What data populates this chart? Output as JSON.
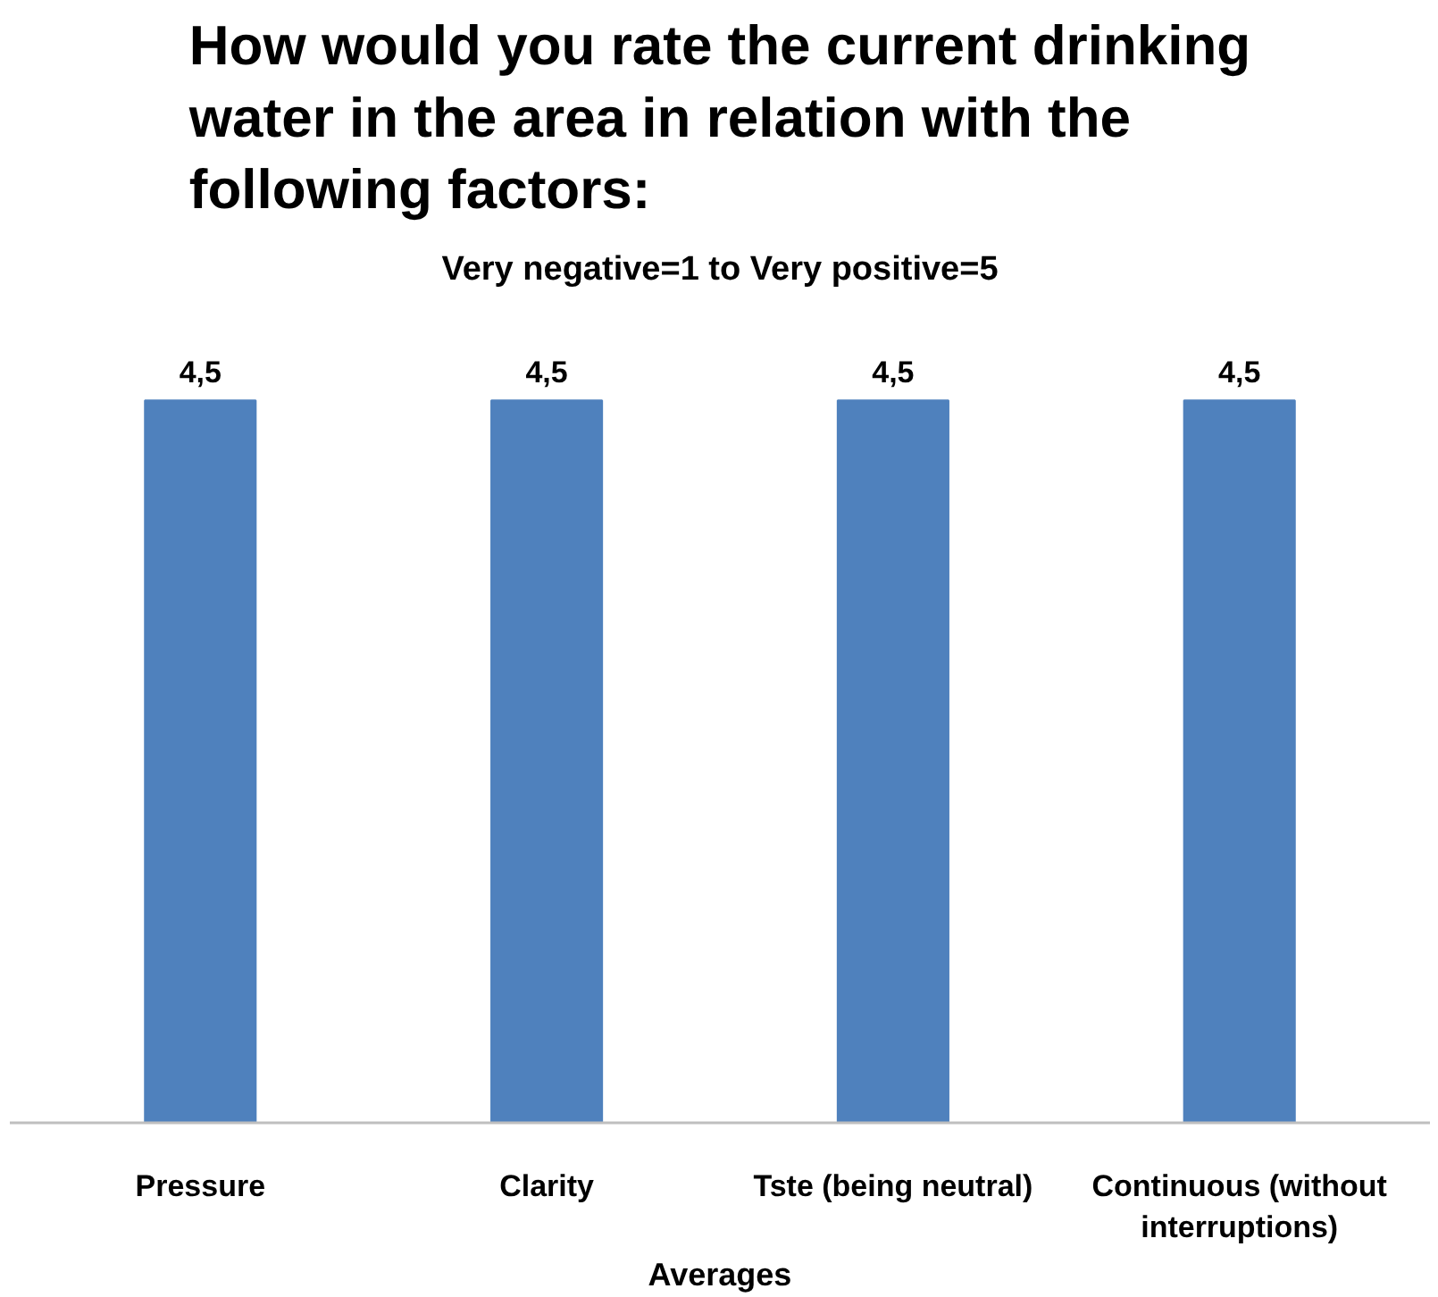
{
  "chart_data": {
    "type": "bar",
    "title": "How would you rate the current drinking water in the area in relation with the following factors:",
    "subtitle": "Very negative=1 to Very positive=5",
    "xlabel": "Averages",
    "categories": [
      "Pressure",
      "Clarity",
      "Tste (being neutral)",
      "Continuous (without interruptions)"
    ],
    "values": [
      4.5,
      4.5,
      4.5,
      4.5
    ],
    "value_labels": [
      "4,5",
      "4,5",
      "4,5",
      "4,5"
    ],
    "color": "#4f81bd",
    "grid": false
  }
}
